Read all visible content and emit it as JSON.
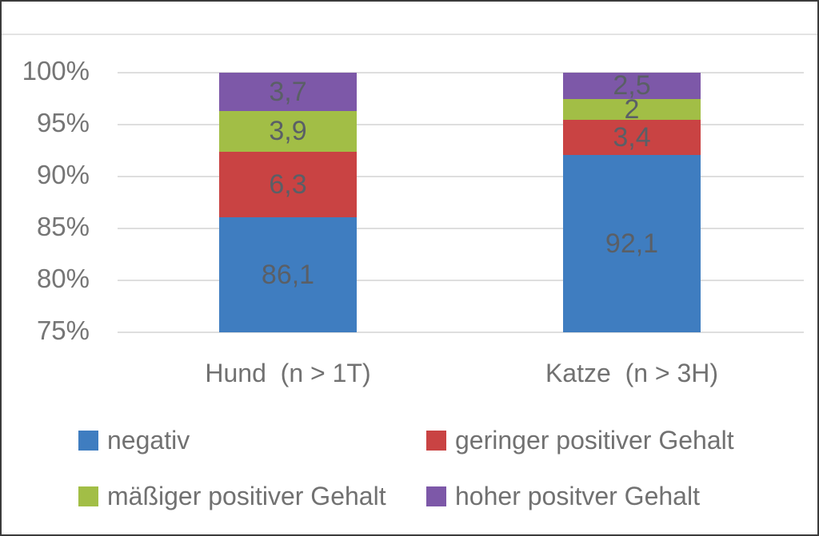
{
  "chart_data": {
    "type": "bar",
    "subtype": "stacked-100-percent-column",
    "categories": [
      "Hund  (n > 1T)",
      "Katze  (n > 3H)"
    ],
    "series": [
      {
        "name": "negativ",
        "color": "#3F7DC0",
        "values": [
          86.1,
          92.1
        ],
        "labels": [
          "86,1",
          "92,1"
        ]
      },
      {
        "name": "geringer positiver Gehalt",
        "color": "#C94343",
        "values": [
          6.3,
          3.4
        ],
        "labels": [
          "6,3",
          "3,4"
        ]
      },
      {
        "name": "mäßiger positiver Gehalt",
        "color": "#A2BE46",
        "values": [
          3.9,
          2
        ],
        "labels": [
          "3,9",
          "2"
        ]
      },
      {
        "name": "hoher positver Gehalt",
        "color": "#7D58A8",
        "values": [
          3.7,
          2.5
        ],
        "labels": [
          "3,7",
          "2,5"
        ]
      }
    ],
    "y_axis": {
      "min": 75,
      "max": 100,
      "step": 5,
      "unit": "%",
      "ticks": [
        "100%",
        "95%",
        "90%",
        "85%",
        "80%",
        "75%"
      ],
      "grid": true
    },
    "legend_position": "bottom",
    "colors": {
      "gridline": "#DEDEDE",
      "axis_text": "#757575",
      "data_label": "#5A5F66",
      "frame_border": "#3B3B3B"
    }
  }
}
